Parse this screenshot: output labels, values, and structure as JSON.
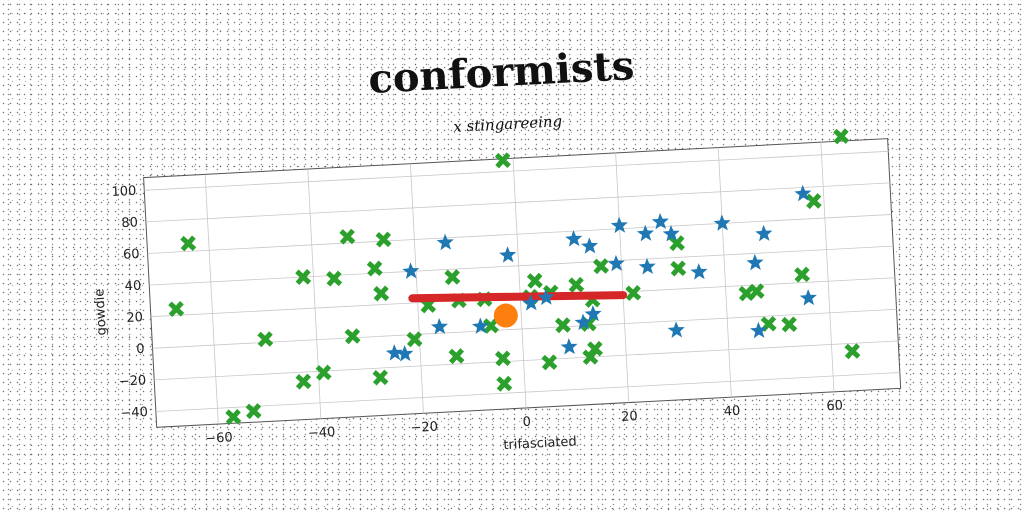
{
  "chart_data": {
    "type": "scatter",
    "title": "conformists",
    "subtitle": "x stingareeing",
    "xlabel": "trifasciated",
    "ylabel": "gowdie",
    "xlim": [
      -72,
      73
    ],
    "ylim": [
      -50,
      108
    ],
    "x_ticks": [
      -60,
      -40,
      -20,
      0,
      20,
      40,
      60
    ],
    "y_ticks": [
      -40,
      -20,
      0,
      20,
      40,
      60,
      80,
      100
    ],
    "grid": true,
    "colors": {
      "green": "#2ca02c",
      "blue": "#1f77b4",
      "red": "#d62728",
      "orange": "#ff7f0e"
    },
    "series": [
      {
        "marker": "x-cross",
        "color": "#2ca02c",
        "points": [
          [
            -2,
            107
          ],
          [
            -64,
            65
          ],
          [
            -67,
            24
          ],
          [
            -33,
            64
          ],
          [
            -26,
            61
          ],
          [
            -42,
            40
          ],
          [
            -36,
            38
          ],
          [
            -28,
            43
          ],
          [
            -27,
            27
          ],
          [
            -13,
            35
          ],
          [
            -50,
            2
          ],
          [
            -33,
            1
          ],
          [
            -21,
            -3
          ],
          [
            -6,
            3
          ],
          [
            -43,
            -26
          ],
          [
            -39,
            -21
          ],
          [
            -28,
            -26
          ],
          [
            -13,
            -15
          ],
          [
            -4,
            -18
          ],
          [
            -4,
            -34
          ],
          [
            -57,
            -46
          ],
          [
            -53,
            -43
          ],
          [
            3,
            30
          ],
          [
            2,
            20
          ],
          [
            6,
            22
          ],
          [
            11,
            26
          ],
          [
            14,
            16
          ],
          [
            16,
            37
          ],
          [
            22,
            19
          ],
          [
            31,
            49
          ],
          [
            31,
            33
          ],
          [
            8,
            1
          ],
          [
            13,
            1
          ],
          [
            14,
            -15
          ],
          [
            13,
            -20
          ],
          [
            5,
            -22
          ],
          [
            44,
            15
          ],
          [
            46,
            16
          ],
          [
            48,
            -5
          ],
          [
            52,
            -6
          ],
          [
            55,
            25
          ],
          [
            58,
            71
          ],
          [
            64,
            111
          ],
          [
            64,
            -25
          ],
          [
            -18,
            18
          ],
          [
            -12,
            20
          ],
          [
            -7,
            20
          ]
        ]
      },
      {
        "marker": "star",
        "color": "#1f77b4",
        "points": [
          [
            -14,
            57
          ],
          [
            -2,
            47
          ],
          [
            -21,
            40
          ],
          [
            -25,
            -11
          ],
          [
            -23,
            -12
          ],
          [
            -16,
            4
          ],
          [
            -8,
            3
          ],
          [
            2,
            16
          ],
          [
            5,
            19
          ],
          [
            11,
            55
          ],
          [
            14,
            50
          ],
          [
            20,
            62
          ],
          [
            25,
            56
          ],
          [
            28,
            63
          ],
          [
            30,
            55
          ],
          [
            19,
            38
          ],
          [
            25,
            35
          ],
          [
            35,
            30
          ],
          [
            40,
            60
          ],
          [
            46,
            34
          ],
          [
            48,
            52
          ],
          [
            56,
            76
          ],
          [
            56,
            10
          ],
          [
            30,
            -6
          ],
          [
            46,
            -9
          ],
          [
            9,
            -13
          ],
          [
            12,
            2
          ],
          [
            14,
            7
          ]
        ]
      }
    ],
    "line": {
      "color": "#d62728",
      "points": [
        [
          -21,
          23
        ],
        [
          20,
          18
        ]
      ]
    },
    "highlight": {
      "color": "#ff7f0e",
      "point": [
        -3,
        9
      ]
    }
  }
}
